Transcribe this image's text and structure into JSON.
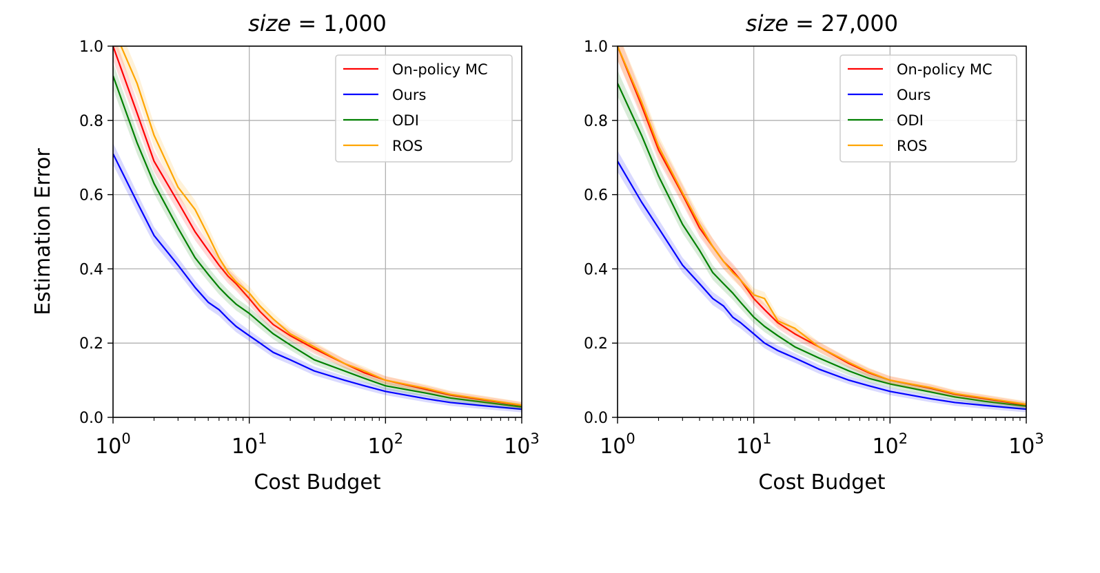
{
  "chart_data": [
    {
      "type": "line",
      "title": {
        "var": "size",
        "eq": " = ",
        "value": "1,000"
      },
      "xlabel": "Cost Budget",
      "ylabel": "Estimation Error",
      "xscale": "log",
      "xlim": [
        1,
        1000
      ],
      "ylim": [
        0,
        1.0
      ],
      "xticks": [
        {
          "base": "10",
          "exp": "0"
        },
        {
          "base": "10",
          "exp": "1"
        },
        {
          "base": "10",
          "exp": "2"
        },
        {
          "base": "10",
          "exp": "3"
        }
      ],
      "yticks": [
        "0.0",
        "0.2",
        "0.4",
        "0.6",
        "0.8",
        "1.0"
      ],
      "grid": true,
      "legend_position": "top-right",
      "x": [
        1,
        1.5,
        2,
        3,
        4,
        5,
        6,
        7,
        8,
        10,
        12,
        15,
        20,
        30,
        50,
        70,
        100,
        200,
        300,
        500,
        1000
      ],
      "series": [
        {
          "name": "On-policy MC",
          "color": "#ff0000",
          "values": [
            1.0,
            0.82,
            0.69,
            0.58,
            0.5,
            0.45,
            0.41,
            0.38,
            0.36,
            0.32,
            0.285,
            0.25,
            0.22,
            0.185,
            0.145,
            0.12,
            0.1,
            0.075,
            0.06,
            0.048,
            0.032
          ]
        },
        {
          "name": "Ours",
          "color": "#0000ff",
          "values": [
            0.71,
            0.58,
            0.49,
            0.41,
            0.35,
            0.31,
            0.29,
            0.265,
            0.245,
            0.22,
            0.2,
            0.175,
            0.155,
            0.125,
            0.1,
            0.085,
            0.07,
            0.05,
            0.04,
            0.032,
            0.022
          ]
        },
        {
          "name": "ODI",
          "color": "#008000",
          "values": [
            0.92,
            0.74,
            0.63,
            0.51,
            0.43,
            0.385,
            0.35,
            0.325,
            0.305,
            0.28,
            0.255,
            0.225,
            0.195,
            0.155,
            0.125,
            0.105,
            0.085,
            0.065,
            0.052,
            0.042,
            0.028
          ]
        },
        {
          "name": "ROS",
          "color": "#ffa500",
          "values": [
            1.05,
            0.9,
            0.76,
            0.62,
            0.56,
            0.49,
            0.43,
            0.39,
            0.365,
            0.335,
            0.3,
            0.265,
            0.225,
            0.19,
            0.145,
            0.125,
            0.1,
            0.078,
            0.062,
            0.05,
            0.033
          ]
        }
      ]
    },
    {
      "type": "line",
      "title": {
        "var": "size",
        "eq": " = ",
        "value": "27,000"
      },
      "xlabel": "Cost Budget",
      "ylabel": "",
      "xscale": "log",
      "xlim": [
        1,
        1000
      ],
      "ylim": [
        0,
        1.0
      ],
      "xticks": [
        {
          "base": "10",
          "exp": "0"
        },
        {
          "base": "10",
          "exp": "1"
        },
        {
          "base": "10",
          "exp": "2"
        },
        {
          "base": "10",
          "exp": "3"
        }
      ],
      "yticks": [
        "0.0",
        "0.2",
        "0.4",
        "0.6",
        "0.8",
        "1.0"
      ],
      "grid": true,
      "legend_position": "top-right",
      "x": [
        1,
        1.5,
        2,
        3,
        4,
        5,
        6,
        7,
        8,
        10,
        12,
        15,
        20,
        30,
        50,
        70,
        100,
        200,
        300,
        500,
        1000
      ],
      "series": [
        {
          "name": "On-policy MC",
          "color": "#ff0000",
          "values": [
            1.0,
            0.84,
            0.72,
            0.6,
            0.51,
            0.46,
            0.42,
            0.395,
            0.37,
            0.32,
            0.29,
            0.255,
            0.225,
            0.19,
            0.145,
            0.12,
            0.1,
            0.078,
            0.062,
            0.05,
            0.033
          ]
        },
        {
          "name": "Ours",
          "color": "#0000ff",
          "values": [
            0.69,
            0.58,
            0.51,
            0.41,
            0.36,
            0.32,
            0.3,
            0.27,
            0.255,
            0.225,
            0.2,
            0.18,
            0.16,
            0.13,
            0.1,
            0.085,
            0.07,
            0.05,
            0.04,
            0.032,
            0.022
          ]
        },
        {
          "name": "ODI",
          "color": "#008000",
          "values": [
            0.9,
            0.76,
            0.65,
            0.52,
            0.45,
            0.39,
            0.36,
            0.335,
            0.31,
            0.27,
            0.245,
            0.22,
            0.19,
            0.16,
            0.125,
            0.105,
            0.09,
            0.068,
            0.055,
            0.043,
            0.03
          ]
        },
        {
          "name": "ROS",
          "color": "#ffa500",
          "values": [
            1.0,
            0.85,
            0.73,
            0.605,
            0.52,
            0.46,
            0.42,
            0.39,
            0.37,
            0.33,
            0.32,
            0.26,
            0.24,
            0.19,
            0.148,
            0.122,
            0.1,
            0.08,
            0.064,
            0.052,
            0.035
          ]
        }
      ]
    }
  ]
}
